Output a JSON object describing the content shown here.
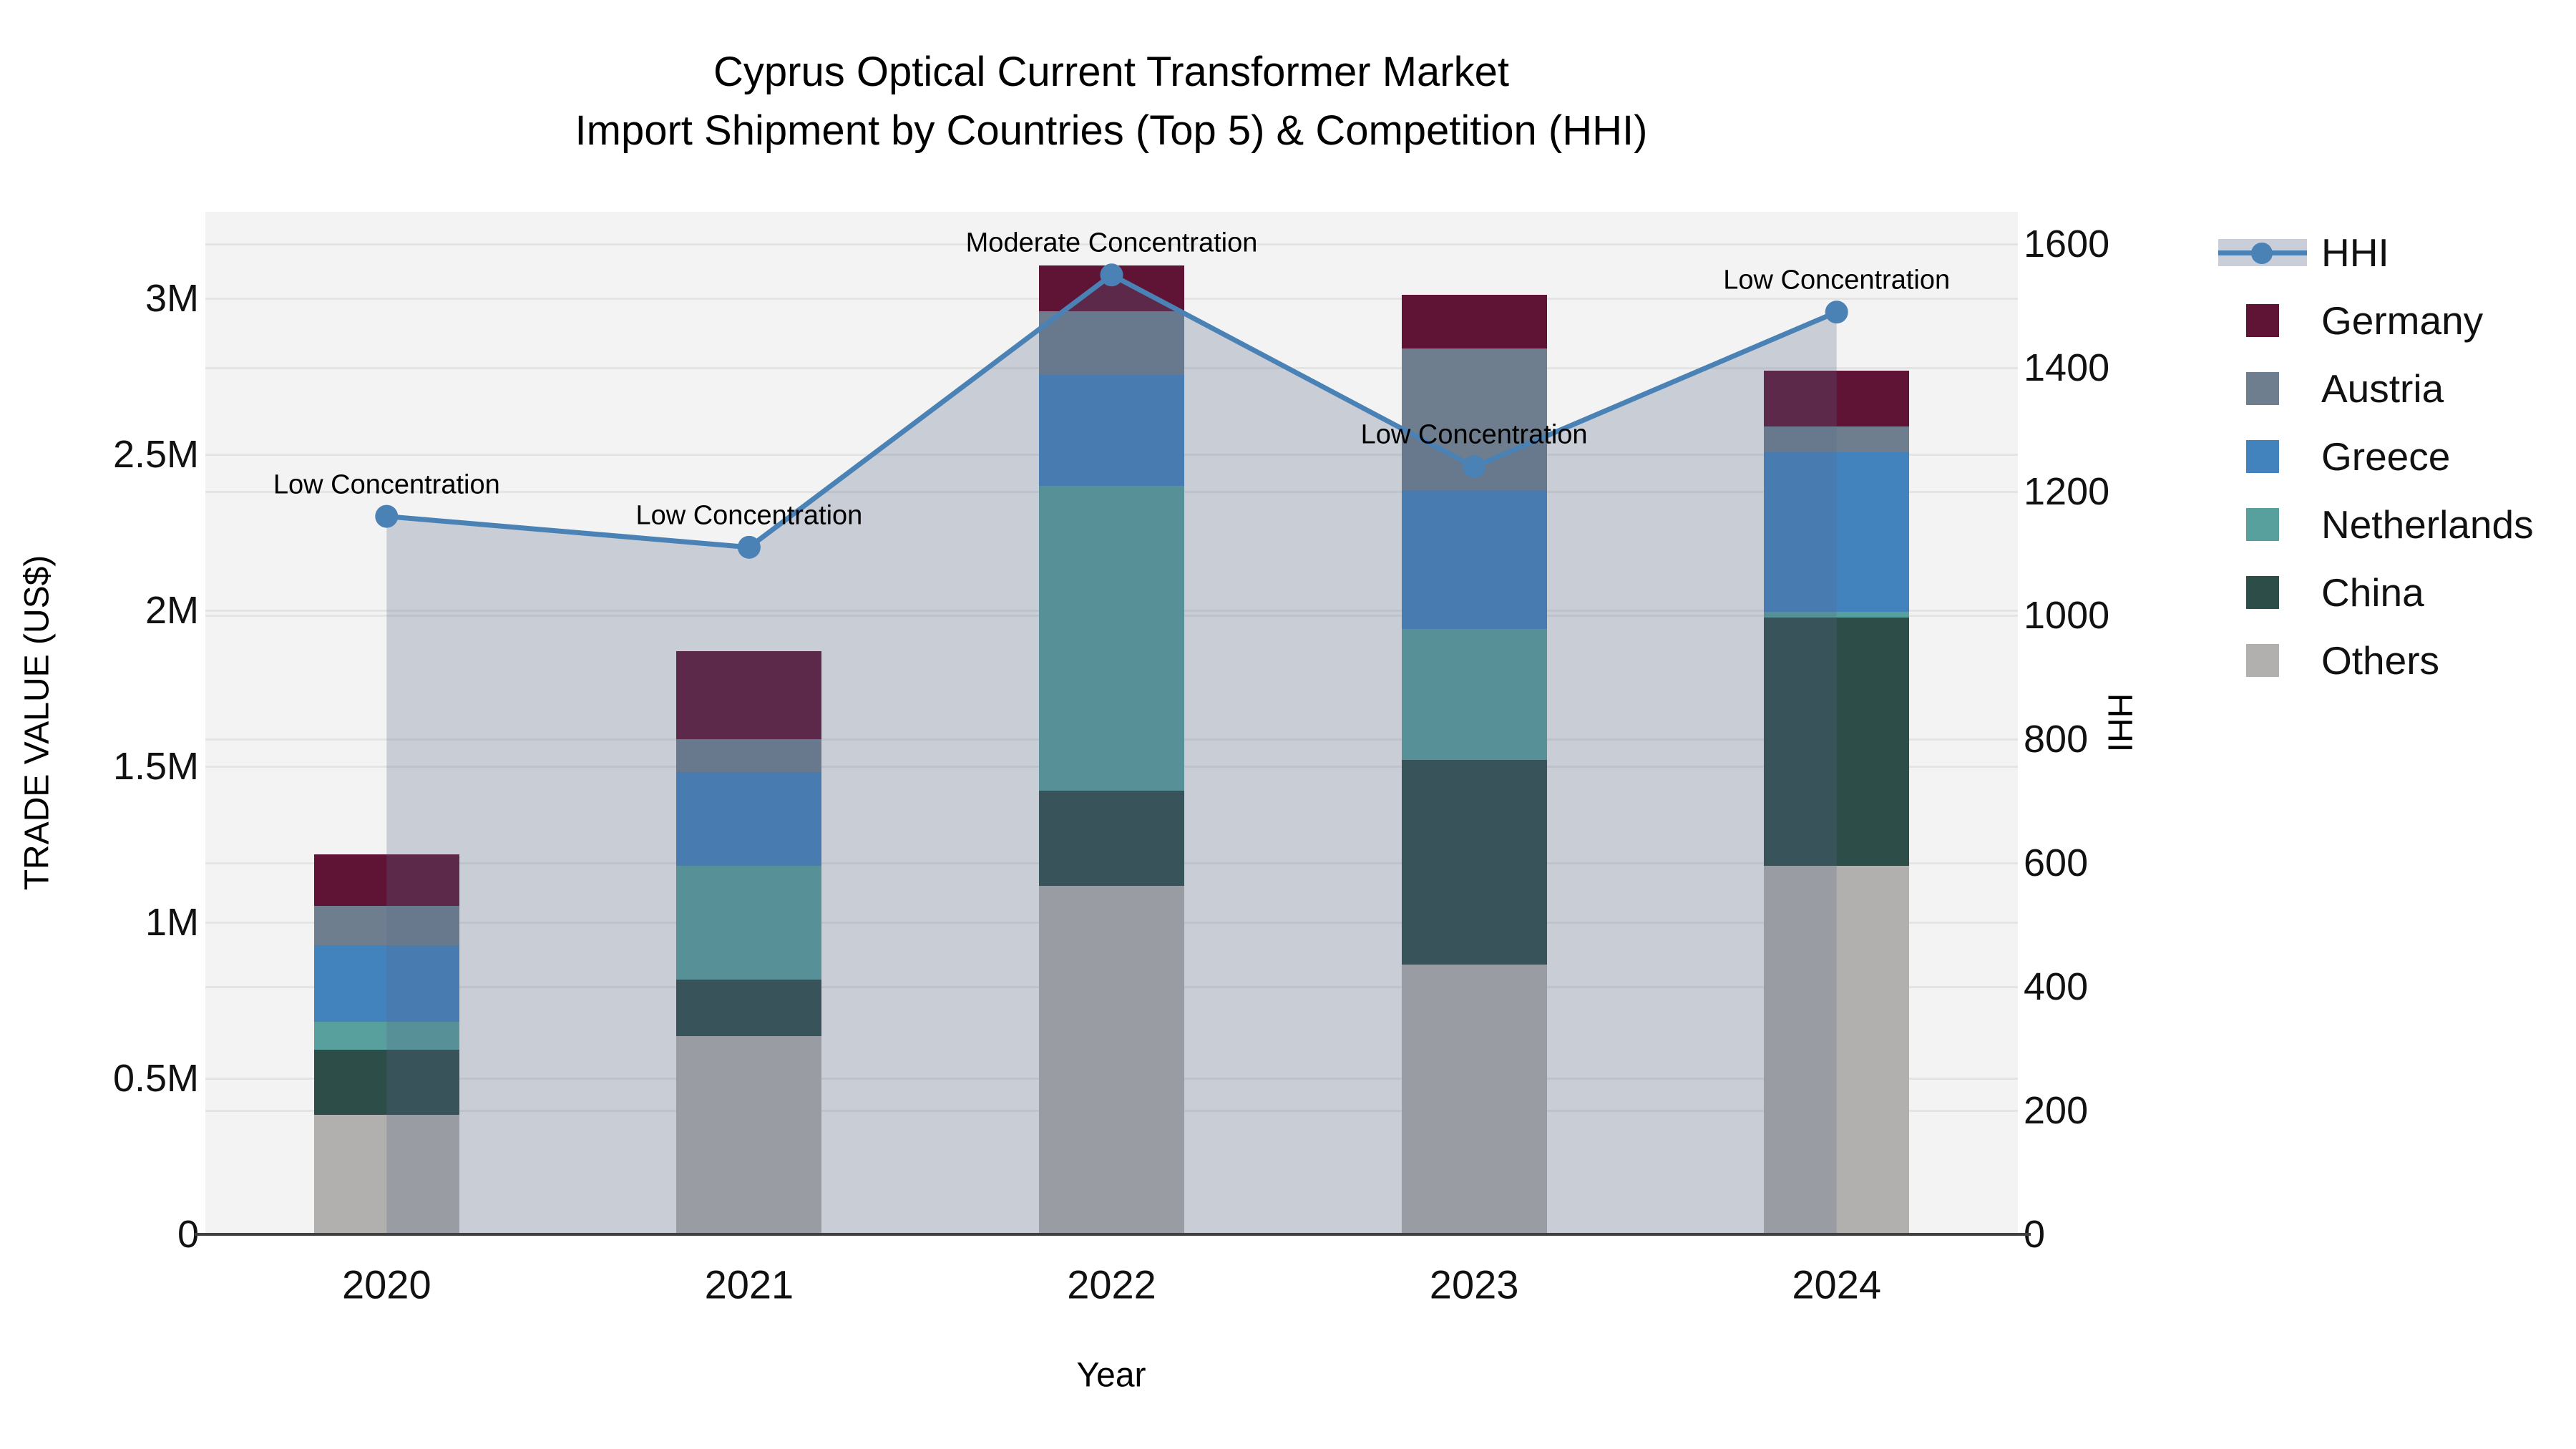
{
  "title": {
    "line1": "Cyprus Optical Current Transformer Market",
    "line2": "Import Shipment by Countries (Top 5) & Competition (HHI)"
  },
  "chart_data": {
    "type": "bar+line",
    "categories": [
      "2020",
      "2021",
      "2022",
      "2023",
      "2024"
    ],
    "stack_order_bottom_up": [
      "Others",
      "China",
      "Netherlands",
      "Greece",
      "Austria",
      "Germany"
    ],
    "series": [
      {
        "name": "Germany",
        "color": "#5f1335",
        "values": [
          165000,
          282000,
          147000,
          172000,
          179000
        ]
      },
      {
        "name": "Austria",
        "color": "#6e7e8f",
        "values": [
          126000,
          105000,
          204000,
          454000,
          82000
        ]
      },
      {
        "name": "Greece",
        "color": "#4383bd",
        "values": [
          246000,
          301000,
          356000,
          445000,
          512000
        ]
      },
      {
        "name": "Netherlands",
        "color": "#58a09e",
        "values": [
          89000,
          364000,
          977000,
          419000,
          18000
        ]
      },
      {
        "name": "China",
        "color": "#2d4d49",
        "values": [
          209000,
          182000,
          305000,
          656000,
          796000
        ]
      },
      {
        "name": "Others",
        "color": "#b2b0ae",
        "values": [
          383000,
          635000,
          1117000,
          865000,
          1181000
        ]
      }
    ],
    "bar_totals": [
      1218000,
      1869000,
      3106000,
      3011000,
      2768000
    ],
    "line": {
      "name": "HHI",
      "color": "#4a82b6",
      "fill": "rgba(90,105,135,0.27)",
      "values": [
        1160,
        1110,
        1550,
        1240,
        1490
      ]
    },
    "annotations": [
      "Low Concentration",
      "Low Concentration",
      "Moderate Concentration",
      "Low Concentration",
      "Low Concentration"
    ],
    "y_left": {
      "label": "TRADE VALUE (US$)",
      "ticks": [
        "0",
        "0.5M",
        "1M",
        "1.5M",
        "2M",
        "2.5M",
        "3M"
      ],
      "tick_values": [
        0,
        500000,
        1000000,
        1500000,
        2000000,
        2500000,
        3000000
      ],
      "max": 3277000
    },
    "y_right": {
      "label": "HHI",
      "ticks": [
        "0",
        "200",
        "400",
        "600",
        "800",
        "1000",
        "1200",
        "1400",
        "1600"
      ],
      "tick_values": [
        0,
        200,
        400,
        600,
        800,
        1000,
        1200,
        1400,
        1600
      ],
      "max": 1652
    },
    "x_axis": {
      "label": "Year"
    },
    "grid": true,
    "legend_position": "right",
    "legend_entries": [
      "HHI",
      "Germany",
      "Austria",
      "Greece",
      "Netherlands",
      "China",
      "Others"
    ],
    "plot_background": "#f3f3f3",
    "gridline_color": "#e4e4e4"
  }
}
